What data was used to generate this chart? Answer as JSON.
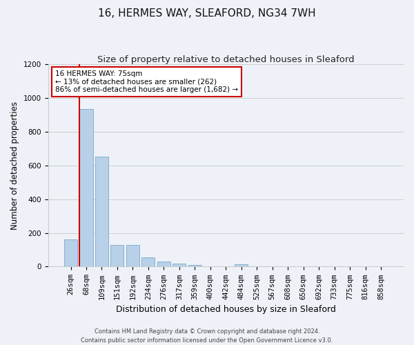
{
  "title": "16, HERMES WAY, SLEAFORD, NG34 7WH",
  "subtitle": "Size of property relative to detached houses in Sleaford",
  "xlabel": "Distribution of detached houses by size in Sleaford",
  "ylabel": "Number of detached properties",
  "footer_line1": "Contains HM Land Registry data © Crown copyright and database right 2024.",
  "footer_line2": "Contains public sector information licensed under the Open Government Licence v3.0.",
  "categories": [
    "26sqm",
    "68sqm",
    "109sqm",
    "151sqm",
    "192sqm",
    "234sqm",
    "276sqm",
    "317sqm",
    "359sqm",
    "400sqm",
    "442sqm",
    "484sqm",
    "525sqm",
    "567sqm",
    "608sqm",
    "650sqm",
    "692sqm",
    "733sqm",
    "775sqm",
    "816sqm",
    "858sqm"
  ],
  "values": [
    163,
    935,
    650,
    130,
    130,
    57,
    30,
    17,
    12,
    0,
    0,
    13,
    0,
    0,
    0,
    0,
    0,
    0,
    0,
    0,
    0
  ],
  "bar_color": "#b8d0e8",
  "bar_edge_color": "#7aaac8",
  "property_line_color": "#cc0000",
  "annotation_line1": "16 HERMES WAY: 75sqm",
  "annotation_line2": "← 13% of detached houses are smaller (262)",
  "annotation_line3": "86% of semi-detached houses are larger (1,682) →",
  "annotation_box_color": "#cc0000",
  "annotation_bg": "#ffffff",
  "ylim": [
    0,
    1200
  ],
  "yticks": [
    0,
    200,
    400,
    600,
    800,
    1000,
    1200
  ],
  "grid_color": "#cccccc",
  "background_color": "#eef2f8",
  "plot_bg_color": "#eef2f8",
  "title_fontsize": 11,
  "subtitle_fontsize": 9.5,
  "ylabel_fontsize": 8.5,
  "xlabel_fontsize": 9,
  "tick_fontsize": 7.5,
  "footer_fontsize": 6,
  "line_x_index": 1.0
}
